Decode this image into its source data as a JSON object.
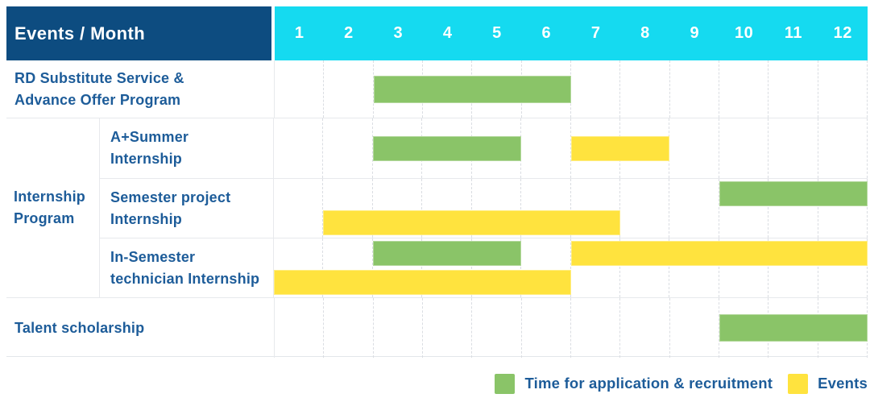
{
  "table": {
    "corner_label": "Events / Month",
    "months": [
      "1",
      "2",
      "3",
      "4",
      "5",
      "6",
      "7",
      "8",
      "9",
      "10",
      "11",
      "12"
    ]
  },
  "colors": {
    "header_bg": "#0d4c80",
    "month_header_bg": "#15daf0",
    "application_bar_green": "#8ac468",
    "events_bar_yellow": "#ffe33e",
    "label_text_blue": "#1d5c99"
  },
  "rows": [
    {
      "kind": "single",
      "label_lines": [
        "RD Substitute Service &",
        "Advance Offer Program"
      ],
      "lanes": [
        [
          {
            "type": "green",
            "start": 3,
            "end": 6
          }
        ]
      ]
    },
    {
      "kind": "group",
      "group_label_lines": [
        "Internship",
        "Program"
      ],
      "subrows": [
        {
          "label_lines": [
            "A+Summer",
            "Internship"
          ],
          "lanes": [
            [
              {
                "type": "green",
                "start": 3,
                "end": 5
              },
              {
                "type": "yellow",
                "start": 7,
                "end": 8
              }
            ]
          ]
        },
        {
          "label_lines": [
            "Semester project",
            "Internship"
          ],
          "lanes": [
            [
              {
                "type": "green",
                "start": 10,
                "end": 12
              }
            ],
            [
              {
                "type": "yellow",
                "start": 2,
                "end": 7
              }
            ]
          ]
        },
        {
          "label_lines": [
            "In-Semester",
            "technician Internship"
          ],
          "lanes": [
            [
              {
                "type": "green",
                "start": 3,
                "end": 5
              },
              {
                "type": "yellow",
                "start": 7,
                "end": 12
              }
            ],
            [
              {
                "type": "yellow",
                "start": 1,
                "end": 6
              }
            ]
          ]
        }
      ]
    },
    {
      "kind": "single",
      "label_lines": [
        "Talent scholarship"
      ],
      "lanes": [
        [
          {
            "type": "green",
            "start": 10,
            "end": 12
          }
        ]
      ]
    }
  ],
  "legend": {
    "items": [
      {
        "swatch": "green",
        "label": "Time for application & recruitment"
      },
      {
        "swatch": "yellow",
        "label": "Events"
      }
    ]
  },
  "chart_data": {
    "type": "gantt",
    "title": "Events / Month",
    "x_axis": {
      "label": "Month",
      "ticks": [
        1,
        2,
        3,
        4,
        5,
        6,
        7,
        8,
        9,
        10,
        11,
        12
      ],
      "range": [
        1,
        12
      ]
    },
    "series_legend": [
      {
        "name": "Time for application & recruitment",
        "color": "#8ac468"
      },
      {
        "name": "Events",
        "color": "#ffe33e"
      }
    ],
    "tasks": [
      {
        "group": null,
        "name": "RD Substitute Service & Advance Offer Program",
        "bars": [
          {
            "series": "Time for application & recruitment",
            "start_month": 3,
            "end_month": 6
          }
        ]
      },
      {
        "group": "Internship Program",
        "name": "A+Summer Internship",
        "bars": [
          {
            "series": "Time for application & recruitment",
            "start_month": 3,
            "end_month": 5
          },
          {
            "series": "Events",
            "start_month": 7,
            "end_month": 8
          }
        ]
      },
      {
        "group": "Internship Program",
        "name": "Semester project Internship",
        "bars": [
          {
            "series": "Time for application & recruitment",
            "start_month": 10,
            "end_month": 12
          },
          {
            "series": "Events",
            "start_month": 2,
            "end_month": 7
          }
        ]
      },
      {
        "group": "Internship Program",
        "name": "In-Semester technician Internship",
        "bars": [
          {
            "series": "Time for application & recruitment",
            "start_month": 3,
            "end_month": 5
          },
          {
            "series": "Events",
            "start_month": 7,
            "end_month": 12
          },
          {
            "series": "Events",
            "start_month": 1,
            "end_month": 6
          }
        ]
      },
      {
        "group": null,
        "name": "Talent scholarship",
        "bars": [
          {
            "series": "Time for application & recruitment",
            "start_month": 10,
            "end_month": 12
          }
        ]
      }
    ]
  }
}
